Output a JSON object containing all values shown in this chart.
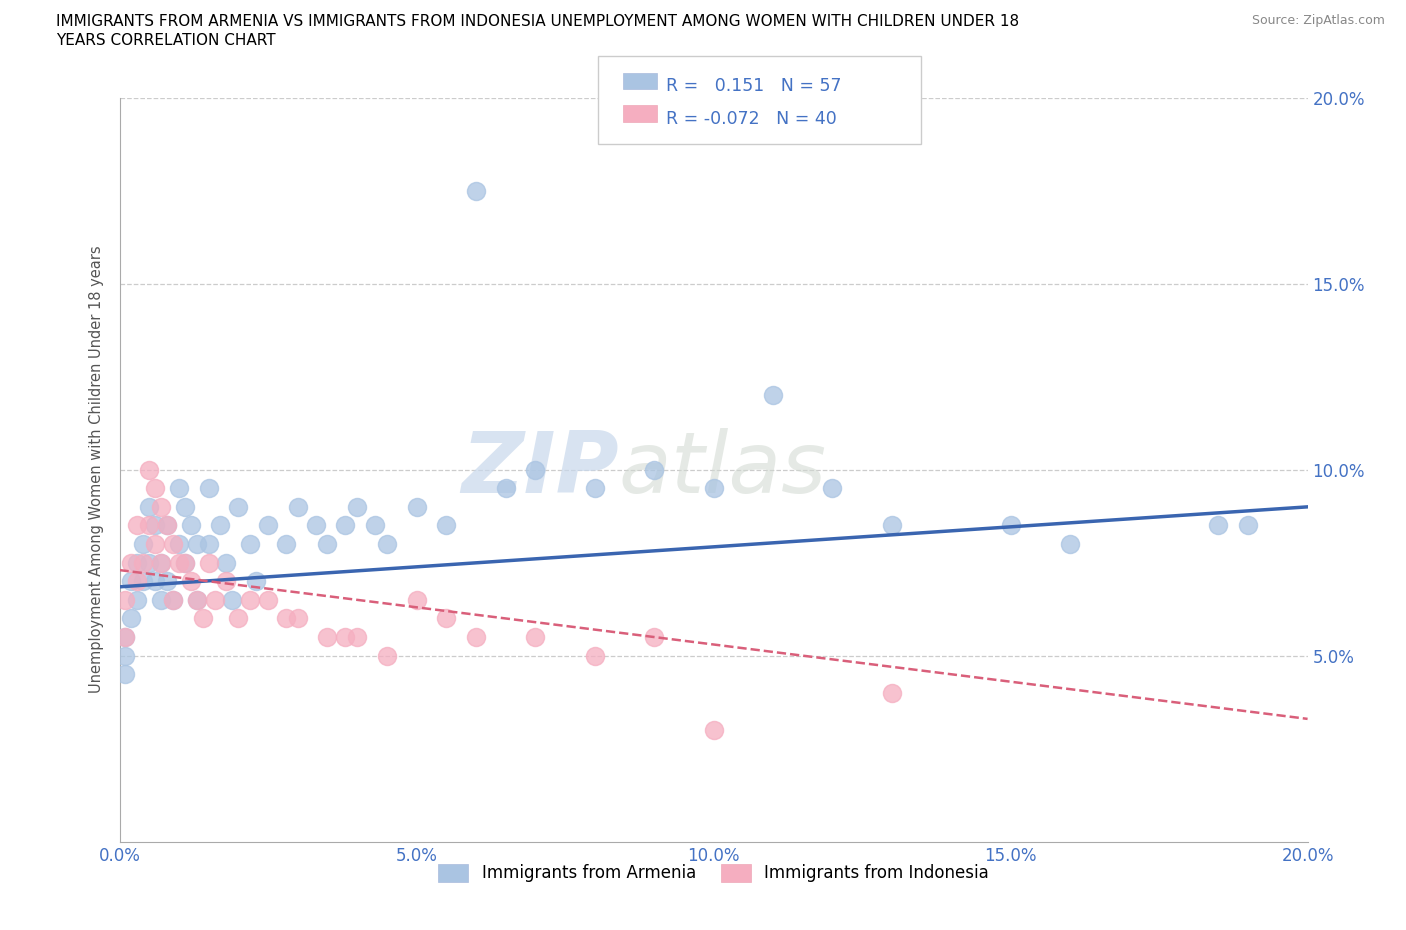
{
  "title_line1": "IMMIGRANTS FROM ARMENIA VS IMMIGRANTS FROM INDONESIA UNEMPLOYMENT AMONG WOMEN WITH CHILDREN UNDER 18",
  "title_line2": "YEARS CORRELATION CHART",
  "source": "Source: ZipAtlas.com",
  "ylabel": "Unemployment Among Women with Children Under 18 years",
  "xlim": [
    0.0,
    0.2
  ],
  "ylim": [
    0.0,
    0.2
  ],
  "xticks": [
    0.0,
    0.05,
    0.1,
    0.15,
    0.2
  ],
  "yticks": [
    0.05,
    0.1,
    0.15,
    0.2
  ],
  "xticklabels": [
    "0.0%",
    "5.0%",
    "10.0%",
    "15.0%",
    "20.0%"
  ],
  "yticklabels_right": [
    "5.0%",
    "10.0%",
    "15.0%",
    "20.0%"
  ],
  "armenia_R": 0.151,
  "armenia_N": 57,
  "indonesia_R": -0.072,
  "indonesia_N": 40,
  "armenia_color": "#aac4e2",
  "indonesia_color": "#f5aec0",
  "armenia_line_color": "#3a65b0",
  "indonesia_line_color": "#d95f7a",
  "watermark_zip": "ZIP",
  "watermark_atlas": "atlas",
  "armenia_x": [
    0.001,
    0.001,
    0.001,
    0.002,
    0.002,
    0.003,
    0.003,
    0.004,
    0.004,
    0.005,
    0.005,
    0.006,
    0.006,
    0.007,
    0.007,
    0.008,
    0.008,
    0.009,
    0.01,
    0.01,
    0.011,
    0.011,
    0.012,
    0.013,
    0.013,
    0.015,
    0.015,
    0.017,
    0.018,
    0.019,
    0.02,
    0.022,
    0.023,
    0.025,
    0.028,
    0.03,
    0.033,
    0.035,
    0.038,
    0.04,
    0.043,
    0.045,
    0.05,
    0.055,
    0.06,
    0.065,
    0.07,
    0.08,
    0.09,
    0.1,
    0.11,
    0.12,
    0.13,
    0.15,
    0.16,
    0.185,
    0.19
  ],
  "armenia_y": [
    0.055,
    0.05,
    0.045,
    0.07,
    0.06,
    0.075,
    0.065,
    0.08,
    0.07,
    0.09,
    0.075,
    0.085,
    0.07,
    0.075,
    0.065,
    0.085,
    0.07,
    0.065,
    0.095,
    0.08,
    0.09,
    0.075,
    0.085,
    0.08,
    0.065,
    0.095,
    0.08,
    0.085,
    0.075,
    0.065,
    0.09,
    0.08,
    0.07,
    0.085,
    0.08,
    0.09,
    0.085,
    0.08,
    0.085,
    0.09,
    0.085,
    0.08,
    0.09,
    0.085,
    0.175,
    0.095,
    0.1,
    0.095,
    0.1,
    0.095,
    0.12,
    0.095,
    0.085,
    0.085,
    0.08,
    0.085,
    0.085
  ],
  "indonesia_x": [
    0.001,
    0.001,
    0.002,
    0.003,
    0.003,
    0.004,
    0.005,
    0.005,
    0.006,
    0.006,
    0.007,
    0.007,
    0.008,
    0.009,
    0.009,
    0.01,
    0.011,
    0.012,
    0.013,
    0.014,
    0.015,
    0.016,
    0.018,
    0.02,
    0.022,
    0.025,
    0.028,
    0.03,
    0.035,
    0.038,
    0.04,
    0.045,
    0.05,
    0.055,
    0.06,
    0.07,
    0.08,
    0.09,
    0.1,
    0.13
  ],
  "indonesia_y": [
    0.065,
    0.055,
    0.075,
    0.085,
    0.07,
    0.075,
    0.1,
    0.085,
    0.095,
    0.08,
    0.09,
    0.075,
    0.085,
    0.08,
    0.065,
    0.075,
    0.075,
    0.07,
    0.065,
    0.06,
    0.075,
    0.065,
    0.07,
    0.06,
    0.065,
    0.065,
    0.06,
    0.06,
    0.055,
    0.055,
    0.055,
    0.05,
    0.065,
    0.06,
    0.055,
    0.055,
    0.05,
    0.055,
    0.03,
    0.04
  ],
  "legend_label1": "Immigrants from Armenia",
  "legend_label2": "Immigrants from Indonesia"
}
